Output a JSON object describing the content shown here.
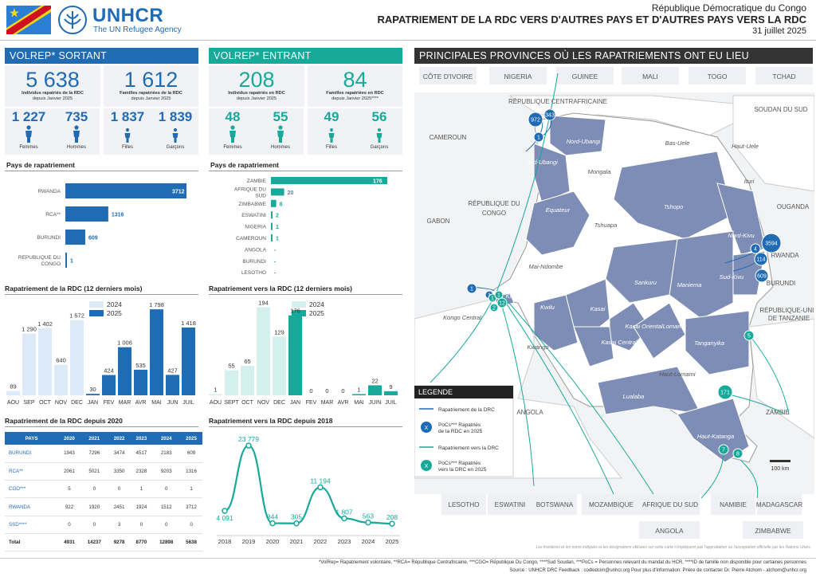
{
  "header": {
    "org": "UNHCR",
    "tagline": "The UN Refugee Agency",
    "country": "République Démocratique du Congo",
    "title": "RAPATRIEMENT DE LA RDC VERS D'AUTRES PAYS ET D'AUTRES PAYS VERS LA RDC",
    "date": "31 juillet 2025"
  },
  "colors": {
    "blue": "#1f6bb4",
    "teal": "#17a99a",
    "light_blue": "#dce9f6",
    "light_teal": "#d3f0ec",
    "map_fill": "#7d8db6",
    "dark": "#333333"
  },
  "sortant": {
    "header": "VOLREP* SORTANT",
    "individus": "5 638",
    "individus_label": [
      "Individus rapatriés de la RDC",
      "depuis Janvier 2025"
    ],
    "familles": "1 612",
    "familles_label": [
      "Familles rapatriées de la RDC",
      "depuis Janvier 2025"
    ],
    "demo": [
      {
        "value": "1 227",
        "label": "Femmes"
      },
      {
        "value": "735",
        "label": "Hommes"
      },
      {
        "value": "1 837",
        "label": "Filles"
      },
      {
        "value": "1 839",
        "label": "Garçons"
      }
    ],
    "pays_title": "Pays de rapatriement",
    "pays_title2": "Rapatriement de la RDC (12 derniers mois)",
    "table_title": "Rapatriement de la RDC depuis 2020"
  },
  "entrant": {
    "header": "VOLREP* ENTRANT",
    "individus": "208",
    "individus_label": [
      "Individus rapatriés en RDC",
      "depuis Janvier 2025"
    ],
    "familles": "84",
    "familles_label": [
      "Familles rapatriées en RDC",
      "depuis Janvier 2025****"
    ],
    "demo": [
      {
        "value": "48",
        "label": "Femmes"
      },
      {
        "value": "55",
        "label": "Hommes"
      },
      {
        "value": "49",
        "label": "Filles"
      },
      {
        "value": "56",
        "label": "Garçons"
      }
    ],
    "pays_title": "Pays de rapatriement",
    "pays_title2": "Rapatriement vers la RDC (12 derniers mois)",
    "line_title": "Rapatriement vers la RDC depuis 2018"
  },
  "chart_data": [
    {
      "type": "bar",
      "orientation": "horizontal",
      "title": "Pays de rapatriement",
      "categories": [
        "RWANDA",
        "RCA**",
        "BURUNDI",
        "REPUBLIQUE DU CONGO"
      ],
      "values": [
        3712,
        1316,
        609,
        1
      ],
      "value_labels": [
        "3712",
        "1316",
        "609",
        "1"
      ]
    },
    {
      "type": "bar",
      "orientation": "horizontal",
      "title": "Pays de rapatriement",
      "categories": [
        "ZAMBIE",
        "AFRIQUE DU SUD",
        "ZIMBABWE",
        "ESWATINI",
        "NIGERIA",
        "CAMEROUN",
        "ANGOLA",
        "BURUNDI",
        "LESOTHO"
      ],
      "values": [
        176,
        20,
        8,
        2,
        1,
        1,
        0,
        0,
        0
      ],
      "value_labels": [
        "176",
        "20",
        "8",
        "2",
        "1",
        "1",
        "-",
        "-",
        "-"
      ]
    },
    {
      "type": "bar",
      "title": "Rapatriement de la RDC (12 derniers mois)",
      "categories": [
        "AOU",
        "SEP",
        "OCT",
        "NOV",
        "DEC",
        "JAN",
        "FEV",
        "MAR",
        "AVR",
        "MAI",
        "JUN",
        "JUIL"
      ],
      "series": [
        {
          "name": "2024",
          "values": [
            89,
            1290,
            1402,
            640,
            1572,
            null,
            null,
            null,
            null,
            null,
            null,
            null
          ],
          "labels": [
            "89",
            "1 290",
            "1 402",
            "640",
            "1 572",
            "",
            "",
            "",
            "",
            "",
            "",
            ""
          ]
        },
        {
          "name": "2025",
          "values": [
            null,
            null,
            null,
            null,
            null,
            30,
            424,
            1006,
            535,
            1798,
            427,
            1418
          ],
          "labels": [
            "",
            "",
            "",
            "",
            "",
            "30",
            "424",
            "1 006",
            "535",
            "1 798",
            "427",
            "1 418"
          ]
        }
      ],
      "ylim": [
        0,
        1900
      ]
    },
    {
      "type": "bar",
      "title": "Rapatriement vers la RDC (12 derniers mois)",
      "categories": [
        "AOU",
        "SEPT",
        "OCT",
        "NOV",
        "DEC",
        "JAN",
        "FEV",
        "MAR",
        "AVR",
        "MAI",
        "JUIN",
        "JUIL"
      ],
      "series": [
        {
          "name": "2024",
          "values": [
            1,
            55,
            65,
            194,
            129,
            null,
            null,
            null,
            null,
            null,
            null,
            null
          ],
          "labels": [
            "1",
            "55",
            "65",
            "194",
            "129",
            "",
            "",
            "",
            "",
            "",
            "",
            ""
          ]
        },
        {
          "name": "2025",
          "values": [
            null,
            null,
            null,
            null,
            null,
            176,
            0,
            0,
            0,
            1,
            22,
            9
          ],
          "labels": [
            "",
            "",
            "",
            "",
            "",
            "176",
            "0",
            "0",
            "0",
            "1",
            "22",
            "9"
          ]
        }
      ],
      "ylim": [
        0,
        200
      ]
    },
    {
      "type": "line",
      "title": "Rapatriement vers la RDC depuis 2018",
      "x": [
        "2018",
        "2019",
        "2020",
        "2021",
        "2022",
        "2023",
        "2024",
        "2025"
      ],
      "values": [
        4091,
        23779,
        344,
        305,
        11194,
        1807,
        563,
        208
      ],
      "labels": [
        "4 091",
        "23 779",
        "344",
        "305",
        "11 194",
        "1 807",
        "563",
        "208"
      ],
      "ylim": [
        0,
        25000
      ]
    },
    {
      "type": "table",
      "title": "Rapatriement de la RDC depuis 2020",
      "columns": [
        "PAYS",
        "2020",
        "2021",
        "2022",
        "2023",
        "2024",
        "2025"
      ],
      "rows": [
        [
          "BURUNDI",
          "1943",
          "7296",
          "3474",
          "4517",
          "2183",
          "609"
        ],
        [
          "RCA**",
          "2061",
          "5021",
          "3350",
          "2328",
          "9203",
          "1316"
        ],
        [
          "CGO***",
          "5",
          "0",
          "0",
          "1",
          "0",
          "1"
        ],
        [
          "RWANDA",
          "922",
          "1920",
          "2451",
          "1924",
          "1512",
          "3712"
        ],
        [
          "SSD****",
          "0",
          "0",
          "3",
          "0",
          "0",
          "0"
        ],
        [
          "Total",
          "4931",
          "14237",
          "9278",
          "8770",
          "12898",
          "5638"
        ]
      ]
    }
  ],
  "map": {
    "header": "PRINCIPALES PROVINCES OÙ LES RAPATRIEMENTS ONT EU LIEU",
    "top_countries": [
      "CÔTE D'IVOIRE",
      "NIGERIA",
      "GUINEE",
      "MALI",
      "TOGO",
      "TCHAD"
    ],
    "bottom_countries": [
      "LESOTHO",
      "ESWATINI",
      "BOTSWANA",
      "MOZAMBIQUE",
      "AFRIQUE DU SUD",
      "NAMIBIE",
      "MADAGASCAR"
    ],
    "bottom_countries2": [
      "ANGOLA",
      "ZIMBABWE"
    ],
    "neighbours": [
      "RÉPUBLIQUE CENTRAFRICAINE",
      "SOUDAN DU SUD",
      "CAMEROUN",
      "GABON",
      "RÉPUBLIQUE DU CONGO",
      "OUGANDA",
      "RWANDA",
      "BURUNDI",
      "RÉPUBLIQUE-UNIE DE TANZANIE",
      "ANGOLA",
      "ZAMBIE"
    ],
    "provinces_active": [
      "Nord-Ubangi",
      "Sud-Ubangi",
      "Equateur",
      "Tshopo",
      "Nord-Kivu",
      "Sud-Kivu",
      "Maniema",
      "Sankuru",
      "Kasai",
      "Kasai Oriental",
      "Kasai Central",
      "Lomami",
      "Tanganyika",
      "Kwilu",
      "Lualaba",
      "Haut-Katanga",
      "Kinshasa"
    ],
    "provinces_grey": [
      "Bas-Uele",
      "Haut-Uele",
      "Ituri",
      "Mongala",
      "Tshuapa",
      "Mai-Ndombe",
      "Kongo Central",
      "Kwango",
      "Haut-Lomami"
    ],
    "bubbles_blue": [
      "972",
      "343",
      "1",
      "3594",
      "4",
      "114",
      "609",
      "1",
      "1"
    ],
    "bubbles_teal": [
      "1",
      "1",
      "2",
      "12",
      "5",
      "171",
      "7",
      "8"
    ],
    "scale": "100 km",
    "legend": {
      "title": "LEGENDE",
      "items": [
        "Rapatriement de la DRC",
        "PoCs*** Rapatriés de la RDC en 2025",
        "Rapatriement vers la DRC",
        "PoCs*** Rapatriés vers la DRC en 2025"
      ],
      "symbol": "X"
    },
    "disclaimer": "Les frontières et les noms indiqués et les désignations utilisées sur cette carte n'impliquent pas l'approbation ou l'acceptation officielle par les Nations Unies."
  },
  "footer": {
    "line1": "*VolRep= Rapatriement volontaire, **RCA= République Centrafricaine, ***CGO= République Du Congo, ****Sud Soudan, ***PoCs = Personnes relevant du mandat du HCR, ****ID de famille non disponible pour certaines personnes",
    "line2": "Source : UNHCR DRC Feedback : codkidcim@unhcr.org     Pour plus d'information: Prière de contacter Dr. Pierre Atchom - atchom@unhcr.org"
  }
}
